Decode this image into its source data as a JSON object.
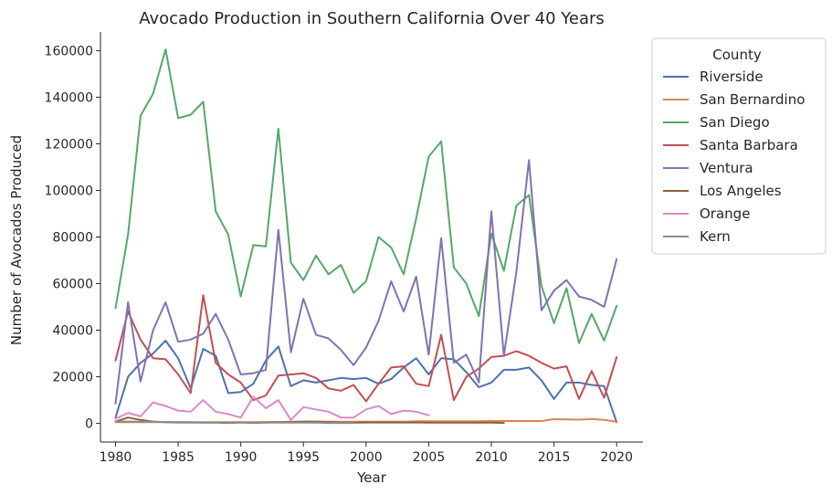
{
  "chart_data": {
    "type": "line",
    "title": "Avocado Production in Southern California Over 40 Years",
    "xlabel": "Year",
    "ylabel": "Number of Avocados Produced",
    "xlim": [
      1978.8,
      2022.1
    ],
    "ylim": [
      -8000,
      168000
    ],
    "xticks": [
      1980,
      1985,
      1990,
      1995,
      2000,
      2005,
      2010,
      2015,
      2020
    ],
    "yticks": [
      0,
      20000,
      40000,
      60000,
      80000,
      100000,
      120000,
      140000,
      160000
    ],
    "grid": false,
    "legend": {
      "title": "County",
      "placement": "outside-right"
    },
    "series": [
      {
        "name": "Riverside",
        "color": "#4c72b0",
        "x": [
          1980,
          1981,
          1982,
          1983,
          1984,
          1985,
          1986,
          1987,
          1988,
          1989,
          1990,
          1991,
          1992,
          1993,
          1994,
          1995,
          1996,
          1997,
          1998,
          1999,
          2000,
          2001,
          2002,
          2003,
          2004,
          2005,
          2006,
          2007,
          2008,
          2009,
          2010,
          2011,
          2012,
          2013,
          2014,
          2015,
          2016,
          2017,
          2018,
          2019,
          2020
        ],
        "y": [
          2500,
          20000,
          26000,
          30000,
          35500,
          28000,
          15000,
          32000,
          29000,
          13000,
          13500,
          17000,
          27000,
          33000,
          16000,
          18500,
          17500,
          18500,
          19500,
          19000,
          19500,
          17000,
          19000,
          24000,
          28000,
          21000,
          28000,
          27500,
          22000,
          15500,
          17500,
          23000,
          23000,
          24000,
          18500,
          10500,
          17500,
          17500,
          16500,
          16000,
          500
        ]
      },
      {
        "name": "San Bernardino",
        "color": "#dd8452",
        "x": [
          1980,
          1981,
          1982,
          1983,
          1984,
          1985,
          1986,
          1987,
          1988,
          1989,
          1990,
          1991,
          1992,
          1993,
          1994,
          1995,
          1996,
          1997,
          1998,
          1999,
          2000,
          2001,
          2002,
          2003,
          2004,
          2005,
          2006,
          2007,
          2008,
          2009,
          2010,
          2011,
          2012,
          2013,
          2014,
          2015,
          2016,
          2017,
          2018,
          2019,
          2020
        ],
        "y": [
          500,
          500,
          600,
          500,
          500,
          500,
          500,
          500,
          500,
          500,
          500,
          500,
          600,
          600,
          700,
          700,
          700,
          700,
          700,
          700,
          800,
          800,
          800,
          800,
          900,
          900,
          900,
          900,
          900,
          900,
          1000,
          1000,
          1000,
          1000,
          1000,
          1800,
          1700,
          1600,
          1900,
          1500,
          700
        ]
      },
      {
        "name": "San Diego",
        "color": "#55a868",
        "x": [
          1980,
          1981,
          1982,
          1983,
          1984,
          1985,
          1986,
          1987,
          1988,
          1989,
          1990,
          1991,
          1992,
          1993,
          1994,
          1995,
          1996,
          1997,
          1998,
          1999,
          2000,
          2001,
          2002,
          2003,
          2004,
          2005,
          2006,
          2007,
          2008,
          2009,
          2010,
          2011,
          2012,
          2013,
          2014,
          2015,
          2016,
          2017,
          2018,
          2019,
          2020
        ],
        "y": [
          49500,
          81000,
          132000,
          141500,
          160500,
          131000,
          132500,
          138000,
          91000,
          81000,
          54500,
          76500,
          76000,
          126500,
          69000,
          61500,
          72000,
          64000,
          68000,
          56000,
          61000,
          80000,
          75500,
          64000,
          88000,
          114500,
          121000,
          67000,
          60000,
          46000,
          81500,
          65500,
          93500,
          98000,
          59000,
          43000,
          58000,
          34500,
          47000,
          35500,
          50500
        ]
      },
      {
        "name": "Santa Barbara",
        "color": "#c44e52",
        "x": [
          1980,
          1981,
          1982,
          1983,
          1984,
          1985,
          1986,
          1987,
          1988,
          1989,
          1990,
          1991,
          1992,
          1993,
          1994,
          1995,
          1996,
          1997,
          1998,
          1999,
          2000,
          2001,
          2002,
          2003,
          2004,
          2005,
          2006,
          2007,
          2008,
          2009,
          2010,
          2011,
          2012,
          2013,
          2014,
          2015,
          2016,
          2017,
          2018,
          2019,
          2020
        ],
        "y": [
          27000,
          48000,
          36000,
          28000,
          27500,
          21000,
          13000,
          55000,
          26000,
          21000,
          17500,
          10000,
          12000,
          20500,
          21000,
          21500,
          19500,
          15000,
          14000,
          16500,
          9500,
          17000,
          24000,
          24500,
          17000,
          16000,
          38000,
          10000,
          20000,
          23500,
          28500,
          29000,
          31000,
          29000,
          26000,
          23500,
          24500,
          10500,
          22500,
          11000,
          28500
        ]
      },
      {
        "name": "Ventura",
        "color": "#8172b3",
        "x": [
          1980,
          1981,
          1982,
          1983,
          1984,
          1985,
          1986,
          1987,
          1988,
          1989,
          1990,
          1991,
          1992,
          1993,
          1994,
          1995,
          1996,
          1997,
          1998,
          1999,
          2000,
          2001,
          2002,
          2003,
          2004,
          2005,
          2006,
          2007,
          2008,
          2009,
          2010,
          2011,
          2012,
          2013,
          2014,
          2015,
          2016,
          2017,
          2018,
          2019,
          2020
        ],
        "y": [
          8500,
          52000,
          18000,
          40000,
          52000,
          35000,
          36000,
          38500,
          47000,
          36000,
          21000,
          21500,
          23000,
          83000,
          30500,
          53500,
          38000,
          36500,
          31500,
          25000,
          32500,
          44000,
          61000,
          48000,
          63000,
          29500,
          79500,
          26000,
          29500,
          17500,
          91000,
          29000,
          65000,
          113000,
          48500,
          57000,
          61500,
          54500,
          53000,
          50000,
          70500
        ]
      },
      {
        "name": "Los Angeles",
        "color": "#8c613c",
        "x": [
          1980,
          1981,
          1982,
          1983,
          1984,
          1985,
          1986,
          1987,
          1988,
          1989,
          1990,
          1991,
          1992,
          1993,
          1994,
          1995,
          1996,
          1997,
          1998,
          1999,
          2000,
          2001,
          2002,
          2003,
          2004,
          2005,
          2006,
          2007,
          2008,
          2009,
          2010,
          2011
        ],
        "y": [
          800,
          2500,
          1500,
          800,
          500,
          400,
          400,
          300,
          300,
          200,
          400,
          200,
          400,
          500,
          600,
          800,
          800,
          600,
          400,
          300,
          400,
          400,
          400,
          400,
          400,
          300,
          300,
          300,
          300,
          300,
          300,
          200
        ]
      },
      {
        "name": "Orange",
        "color": "#da8bc3",
        "x": [
          1980,
          1981,
          1982,
          1983,
          1984,
          1985,
          1986,
          1987,
          1988,
          1989,
          1990,
          1991,
          1992,
          1993,
          1994,
          1995,
          1996,
          1997,
          1998,
          1999,
          2000,
          2001,
          2002,
          2003,
          2004,
          2005
        ],
        "y": [
          2000,
          4500,
          3000,
          9000,
          7500,
          5500,
          5000,
          10000,
          5000,
          4000,
          2500,
          11500,
          6500,
          10000,
          1500,
          7000,
          6000,
          5000,
          2500,
          2500,
          6000,
          7500,
          4000,
          5500,
          5000,
          3500
        ]
      },
      {
        "name": "Kern",
        "color": "#8c8c8c",
        "x": [
          1980,
          1981,
          1982,
          1983,
          1984,
          1985,
          1986,
          1987,
          1988,
          1989,
          1990,
          1991,
          1992,
          1993,
          1994,
          1995,
          1996,
          1997,
          1998,
          1999
        ],
        "y": [
          800,
          800,
          700,
          700,
          600,
          500,
          500,
          400,
          400,
          400,
          400,
          300,
          300,
          300,
          300,
          300,
          300,
          200,
          200,
          200
        ]
      }
    ]
  }
}
